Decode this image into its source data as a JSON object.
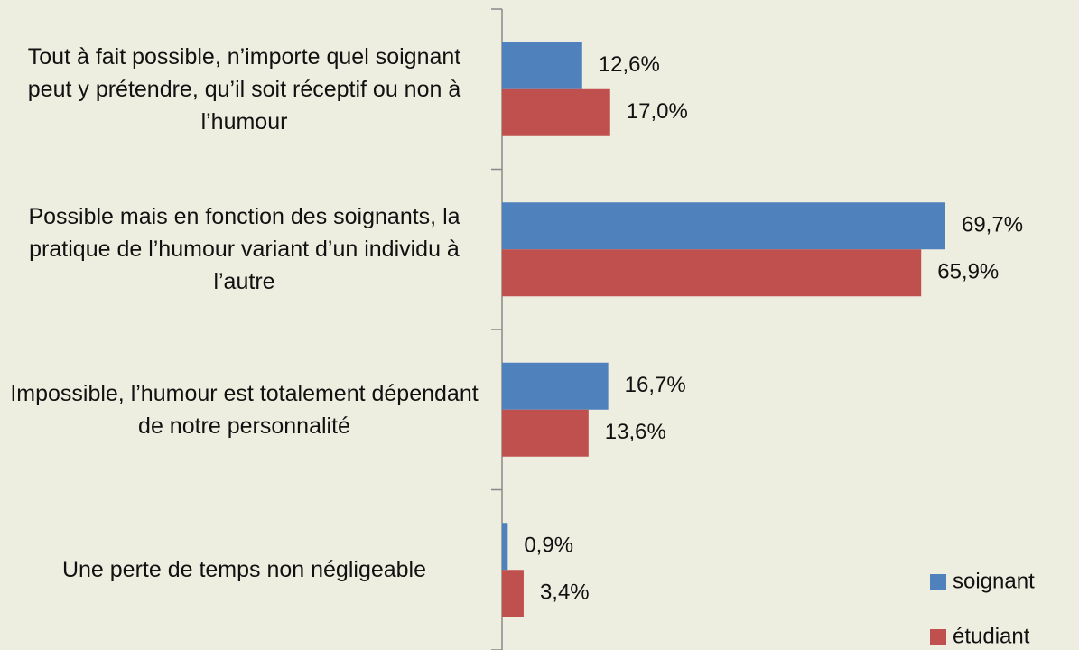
{
  "chart_data": {
    "type": "hbar",
    "categories": [
      "Tout à fait possible, n’importe quel soignant peut y prétendre, qu’il soit réceptif ou non à l’humour",
      "Possible mais en fonction des soignants, la pratique de l’humour variant d’un individu à l’autre",
      "Impossible, l’humour est totalement dépendant de notre personnalité",
      "Une perte de temps non négligeable"
    ],
    "series": [
      {
        "name": "soignant",
        "color": "#4f81bd",
        "values": [
          12.6,
          69.7,
          16.7,
          0.9
        ],
        "value_labels": [
          "12,6%",
          "69,7%",
          "16,7%",
          "0,9%"
        ]
      },
      {
        "name": "étudiant",
        "color": "#c0504d",
        "values": [
          17.0,
          65.9,
          13.6,
          3.4
        ],
        "value_labels": [
          "17,0%",
          "65,9%",
          "13,6%",
          "3,4%"
        ]
      }
    ],
    "xlim": [
      0,
      90
    ],
    "legend": "bottom-right"
  }
}
